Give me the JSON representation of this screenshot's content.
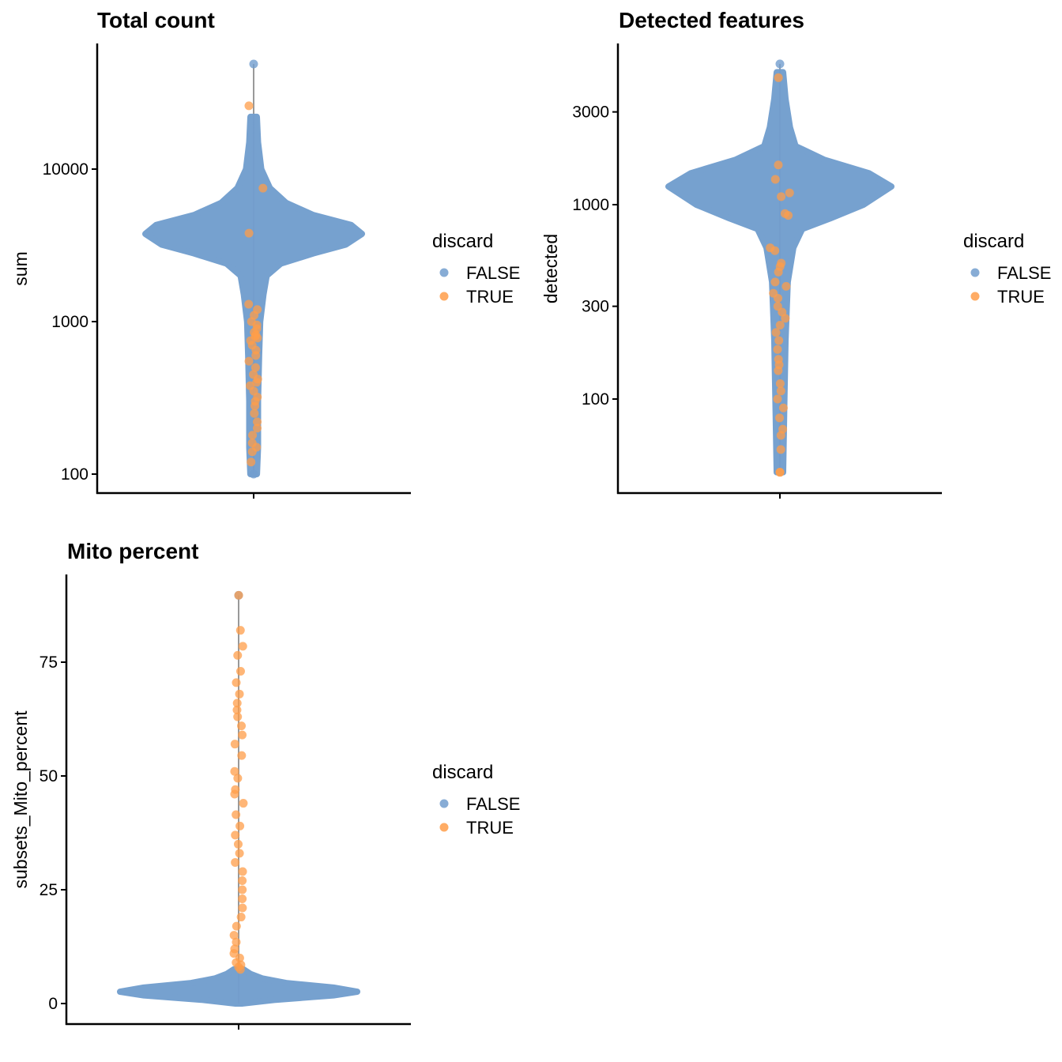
{
  "colors": {
    "FALSE": "#729ECE",
    "TRUE": "#FF9E4A",
    "range_line": "#999999"
  },
  "chart_data": [
    {
      "type": "violin",
      "title": "Total count",
      "ylabel": "sum",
      "xlabel": "",
      "yscale": "log10",
      "ylim": [
        80,
        60000
      ],
      "yticks": [
        100,
        1000,
        10000
      ],
      "ytick_labels": [
        "100",
        "1000",
        "10000"
      ],
      "legend": {
        "title": "discard",
        "entries": [
          "FALSE",
          "TRUE"
        ],
        "position": "right"
      },
      "range": [
        100,
        48900
      ],
      "profile": [
        [
          100,
          0.03
        ],
        [
          150,
          0.04
        ],
        [
          300,
          0.04
        ],
        [
          600,
          0.05
        ],
        [
          1000,
          0.06
        ],
        [
          1500,
          0.09
        ],
        [
          2000,
          0.12
        ],
        [
          2400,
          0.25
        ],
        [
          2800,
          0.55
        ],
        [
          3200,
          0.85
        ],
        [
          3760,
          1
        ],
        [
          4300,
          0.9
        ],
        [
          5000,
          0.55
        ],
        [
          6000,
          0.3
        ],
        [
          7500,
          0.15
        ],
        [
          10000,
          0.07
        ],
        [
          15000,
          0.04
        ],
        [
          22000,
          0.02
        ]
      ],
      "discard_true_values": [
        26000,
        7500,
        3800,
        1300,
        1200,
        1100,
        1000,
        950,
        900,
        850,
        820,
        800,
        780,
        750,
        700,
        650,
        600,
        550,
        500,
        450,
        420,
        400,
        380,
        350,
        320,
        300,
        280,
        250,
        220,
        200,
        180,
        160,
        150,
        140,
        120
      ]
    },
    {
      "type": "violin",
      "title": "Detected features",
      "ylabel": "detected",
      "xlabel": "",
      "yscale": "log10",
      "ylim": [
        35,
        6500
      ],
      "yticks": [
        100,
        300,
        1000,
        3000
      ],
      "ytick_labels": [
        "100",
        "300",
        "1000",
        "3000"
      ],
      "legend": {
        "title": "discard",
        "entries": [
          "FALSE",
          "TRUE"
        ],
        "position": "right"
      },
      "range": [
        42,
        5300
      ],
      "profile": [
        [
          42,
          0.02
        ],
        [
          100,
          0.04
        ],
        [
          200,
          0.05
        ],
        [
          400,
          0.07
        ],
        [
          600,
          0.12
        ],
        [
          750,
          0.2
        ],
        [
          850,
          0.45
        ],
        [
          1000,
          0.75
        ],
        [
          1240,
          1
        ],
        [
          1450,
          0.8
        ],
        [
          1700,
          0.4
        ],
        [
          2000,
          0.14
        ],
        [
          2500,
          0.09
        ],
        [
          3500,
          0.05
        ],
        [
          4800,
          0.02
        ]
      ],
      "discard_true_values": [
        4500,
        1600,
        1350,
        1150,
        1100,
        900,
        880,
        600,
        580,
        500,
        480,
        450,
        400,
        380,
        350,
        330,
        300,
        280,
        260,
        240,
        220,
        200,
        180,
        160,
        150,
        140,
        120,
        110,
        100,
        90,
        80,
        70,
        65,
        55,
        42
      ]
    },
    {
      "type": "violin",
      "title": "Mito percent",
      "ylabel": "subsets_Mito_percent",
      "xlabel": "",
      "yscale": "linear",
      "ylim": [
        -4.5,
        94
      ],
      "yticks": [
        0,
        25,
        50,
        75
      ],
      "ytick_labels": [
        "0",
        "25",
        "50",
        "75"
      ],
      "legend": {
        "title": "discard",
        "entries": [
          "FALSE",
          "TRUE"
        ],
        "position": "right"
      },
      "range": [
        0,
        89.7
      ],
      "profile": [
        [
          0,
          0.02
        ],
        [
          0.8,
          0.3
        ],
        [
          1.8,
          0.8
        ],
        [
          2.6,
          1
        ],
        [
          3.5,
          0.8
        ],
        [
          4.5,
          0.4
        ],
        [
          5.5,
          0.2
        ],
        [
          6.5,
          0.1
        ],
        [
          7.5,
          0.04
        ]
      ],
      "discard_true_values": [
        89.7,
        82,
        78.5,
        76.5,
        73,
        70.5,
        68,
        66,
        64.5,
        63,
        61,
        59,
        57,
        54.5,
        51,
        49.5,
        47,
        46,
        44,
        41.5,
        39,
        37,
        35,
        33,
        31,
        29,
        27,
        25,
        23,
        21,
        19,
        17,
        15,
        13.5,
        12,
        11,
        10,
        9,
        8.5,
        8,
        7.5
      ]
    }
  ]
}
